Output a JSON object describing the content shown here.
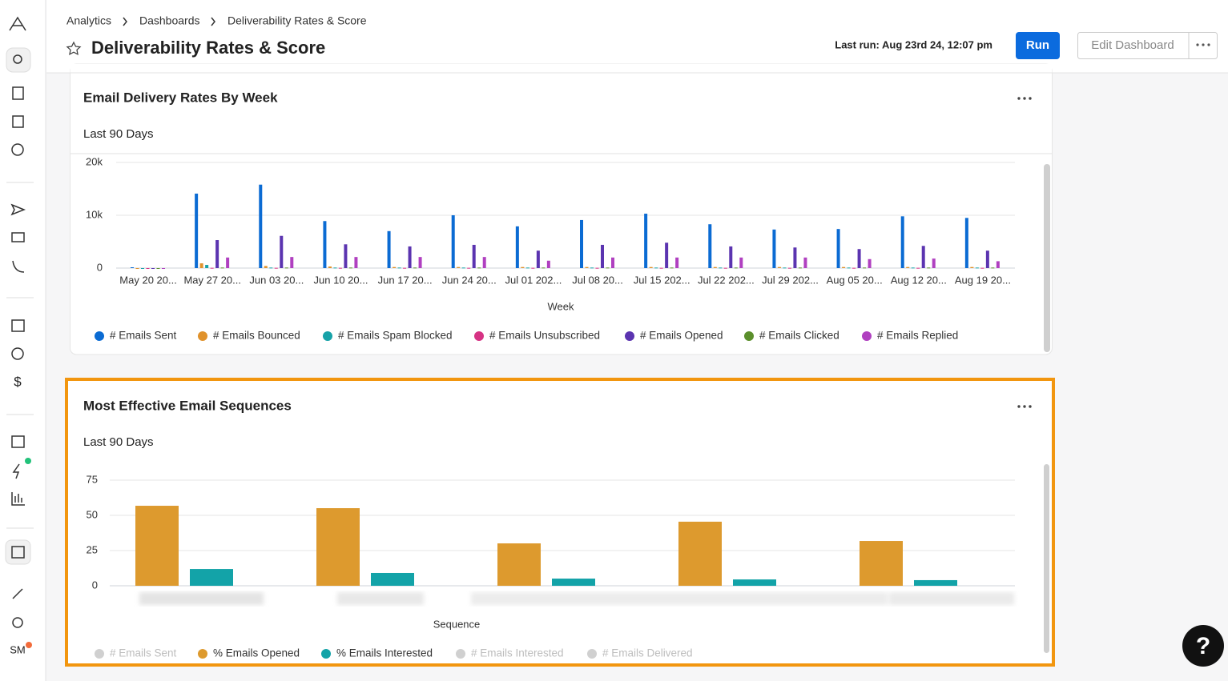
{
  "nav": {
    "breadcrumbs": [
      "Analytics",
      "Dashboards",
      "Deliverability Rates & Score"
    ],
    "title": "Deliverability Rates & Score",
    "last_run": "Last run: Aug 23rd 24, 12:07 pm",
    "run": "Run",
    "edit": "Edit Dashboard",
    "avatar": "SM",
    "help": "?"
  },
  "panels": [
    {
      "title": "Email Delivery Rates By Week",
      "subtitle": "Last 90 Days",
      "chart": {
        "type": "bar",
        "x_label": "Week",
        "categories": [
          "May 20 20...",
          "May 27 20...",
          "Jun 03 20...",
          "Jun 10 20...",
          "Jun 17 20...",
          "Jun 24 20...",
          "Jul 01 202...",
          "Jul 08 20...",
          "Jul 15 202...",
          "Jul 22 202...",
          "Jul 29 202...",
          "Aug 05 20...",
          "Aug 12 20...",
          "Aug 19 20..."
        ],
        "ylim": [
          0,
          20000
        ],
        "yticks": [
          0,
          {
            "value": 10000,
            "label": "10k"
          },
          {
            "value": 20000,
            "label": "20k"
          }
        ],
        "grid": true,
        "series": [
          {
            "name": "# Emails Sent",
            "color": "#0b6bd3",
            "values": [
              150,
              14100,
              15800,
              8900,
              7000,
              10000,
              7900,
              9100,
              10300,
              8300,
              7300,
              7400,
              9800,
              9500
            ]
          },
          {
            "name": "# Emails Bounced",
            "color": "#e0922c",
            "values": [
              0,
              900,
              400,
              300,
              200,
              200,
              200,
              200,
              200,
              200,
              200,
              200,
              200,
              200
            ]
          },
          {
            "name": "# Emails Spam Blocked",
            "color": "#17a2a8",
            "values": [
              0,
              600,
              100,
              100,
              100,
              100,
              100,
              100,
              100,
              100,
              100,
              100,
              100,
              100
            ]
          },
          {
            "name": "# Emails Unsubscribed",
            "color": "#d63384",
            "values": [
              0,
              50,
              50,
              50,
              50,
              50,
              50,
              50,
              50,
              50,
              50,
              50,
              50,
              50
            ]
          },
          {
            "name": "# Emails Opened",
            "color": "#5b34b0",
            "values": [
              0,
              5300,
              6100,
              4500,
              4100,
              4400,
              3300,
              4400,
              4800,
              4100,
              3900,
              3600,
              4200,
              3300
            ]
          },
          {
            "name": "# Emails Clicked",
            "color": "#5b8f2c",
            "values": [
              0,
              100,
              100,
              100,
              100,
              100,
              100,
              100,
              100,
              100,
              100,
              100,
              100,
              100
            ]
          },
          {
            "name": "# Emails Replied",
            "color": "#b040c0",
            "values": [
              0,
              2000,
              2100,
              2100,
              2100,
              2100,
              1400,
              2000,
              2000,
              2000,
              2000,
              1700,
              1800,
              1300
            ]
          }
        ]
      }
    },
    {
      "title": "Most Effective Email Sequences",
      "subtitle": "Last 90 Days",
      "chart": {
        "type": "bar",
        "x_label": "Sequence",
        "categories": [
          null,
          null,
          null,
          null,
          null
        ],
        "ylim": [
          0,
          75
        ],
        "yticks": [
          0,
          25,
          50,
          75
        ],
        "grid": true,
        "series": [
          {
            "name": "# Emails Sent",
            "color": "#cccccc",
            "hidden": true
          },
          {
            "name": "% Emails Opened",
            "color": "#dd9a2e",
            "values": [
              56.8,
              55.1,
              30.1,
              45.5,
              31.8
            ]
          },
          {
            "name": "% Emails Interested",
            "color": "#13a3a8",
            "values": [
              11.9,
              9.1,
              5.1,
              4.5,
              4.0
            ]
          },
          {
            "name": "# Emails Interested",
            "color": "#cccccc",
            "hidden": true
          },
          {
            "name": "# Emails Delivered",
            "color": "#cccccc",
            "hidden": true
          }
        ]
      }
    }
  ]
}
